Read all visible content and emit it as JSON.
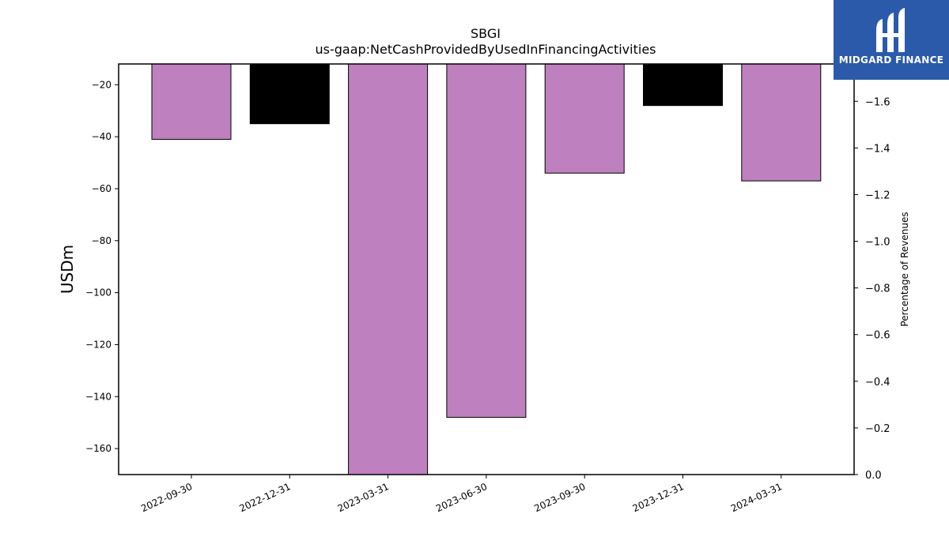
{
  "chart_data": {
    "type": "bar",
    "title": "SBGI",
    "subtitle": "us-gaap:NetCashProvidedByUsedInFinancingActivities",
    "ylabel": "USDm",
    "y2label": "Percentage of Revenues",
    "categories": [
      "2022-09-30",
      "2022-12-31",
      "2023-03-31",
      "2023-06-30",
      "2023-09-30",
      "2023-12-31",
      "2024-03-31"
    ],
    "values": [
      -41,
      -35,
      -170,
      -148,
      -54,
      -28,
      -57
    ],
    "bar_colors": [
      "#bf80bf",
      "#000000",
      "#bf80bf",
      "#bf80bf",
      "#bf80bf",
      "#000000",
      "#bf80bf"
    ],
    "ylim": [
      -170,
      -12
    ],
    "yticks": [
      -20,
      -40,
      -60,
      -80,
      -100,
      -120,
      -140,
      -160
    ],
    "ytick_labels": [
      "−20",
      "−40",
      "−60",
      "−80",
      "−100",
      "−120",
      "−140",
      "−160"
    ],
    "y2lim": [
      0.0,
      -1.76
    ],
    "y2ticks": [
      -1.6,
      -1.4,
      -1.2,
      -1.0,
      -0.8,
      -0.6,
      -0.4,
      -0.2,
      0.0
    ],
    "y2tick_labels": [
      "−1.6",
      "−1.4",
      "−1.2",
      "−1.0",
      "−0.8",
      "−0.6",
      "−0.4",
      "−0.2",
      "0.0"
    ],
    "grid": false,
    "legend": "none"
  },
  "logo": {
    "text": "MIDGARD FINANCE",
    "color": "#2b5aab"
  }
}
